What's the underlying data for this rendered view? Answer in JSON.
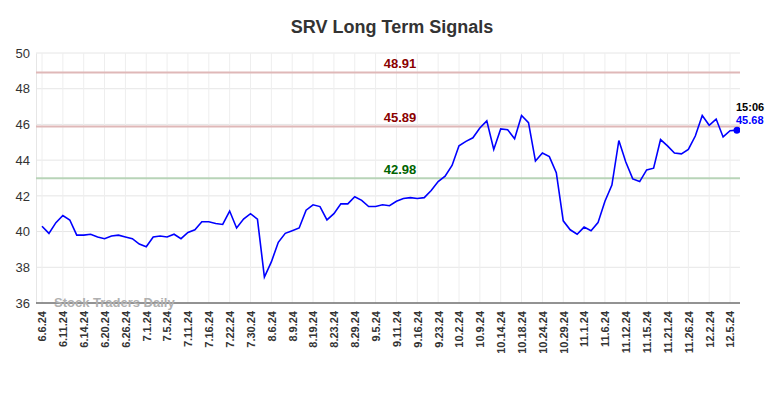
{
  "chart_data": {
    "type": "line",
    "title": "SRV Long Term Signals",
    "watermark": "Stock Traders Daily",
    "categories": [
      "6.6.24",
      null,
      null,
      "6.11.24",
      null,
      null,
      "6.14.24",
      null,
      null,
      "6.20.24",
      null,
      null,
      "6.26.24",
      null,
      null,
      "7.1.24",
      null,
      null,
      "7.5.24",
      null,
      null,
      "7.11.24",
      null,
      null,
      "7.16.24",
      null,
      null,
      "7.22.24",
      null,
      null,
      "7.30.24",
      null,
      null,
      "8.6.24",
      null,
      null,
      "8.9.24",
      null,
      null,
      "8.19.24",
      null,
      null,
      "8.23.24",
      null,
      null,
      "8.29.24",
      null,
      null,
      "9.5.24",
      null,
      null,
      "9.11.24",
      null,
      null,
      "9.16.24",
      null,
      null,
      "9.23.24",
      null,
      null,
      "10.2.24",
      null,
      null,
      "10.9.24",
      null,
      null,
      "10.14.24",
      null,
      null,
      "10.18.24",
      null,
      null,
      "10.24.24",
      null,
      null,
      "10.29.24",
      null,
      null,
      "11.1.24",
      null,
      null,
      "11.6.24",
      null,
      null,
      "11.12.24",
      null,
      null,
      "11.15.24",
      null,
      null,
      "11.21.24",
      null,
      null,
      "11.26.24",
      null,
      null,
      "12.2.24",
      null,
      null,
      "12.5.24",
      null
    ],
    "values": [
      40.3,
      39.9,
      40.5,
      40.9,
      40.65,
      39.8,
      39.8,
      39.85,
      39.7,
      39.6,
      39.75,
      39.8,
      39.7,
      39.6,
      39.3,
      39.15,
      39.7,
      39.75,
      39.7,
      39.85,
      39.6,
      39.95,
      40.1,
      40.55,
      40.55,
      40.45,
      40.4,
      41.15,
      40.2,
      40.7,
      41.0,
      40.7,
      37.45,
      38.3,
      39.4,
      39.9,
      40.05,
      40.2,
      41.2,
      41.5,
      41.4,
      40.65,
      41.0,
      41.55,
      41.55,
      41.95,
      41.75,
      41.4,
      41.4,
      41.5,
      41.45,
      41.7,
      41.85,
      41.9,
      41.85,
      41.9,
      42.3,
      42.8,
      43.1,
      43.7,
      44.8,
      45.05,
      45.25,
      45.8,
      46.2,
      44.6,
      45.75,
      45.7,
      45.2,
      46.5,
      46.1,
      43.95,
      44.4,
      44.2,
      43.3,
      40.6,
      40.1,
      39.85,
      40.25,
      40.05,
      40.5,
      41.7,
      42.6,
      45.1,
      43.9,
      42.95,
      42.8,
      43.45,
      43.55,
      45.15,
      44.8,
      44.4,
      44.35,
      44.6,
      45.35,
      46.5,
      45.95,
      46.3,
      45.3,
      45.65,
      45.68
    ],
    "color": "#0000ff",
    "ylim": [
      36,
      50
    ],
    "yticks": [
      36,
      38,
      40,
      42,
      44,
      46,
      48,
      50
    ],
    "grid": true,
    "reference_lines": [
      {
        "value": 48.91,
        "color": "#8b0000"
      },
      {
        "value": 45.89,
        "color": "#8b0000"
      },
      {
        "value": 42.98,
        "color": "#006400"
      }
    ],
    "last_label": {
      "time": "15:06"
    }
  }
}
